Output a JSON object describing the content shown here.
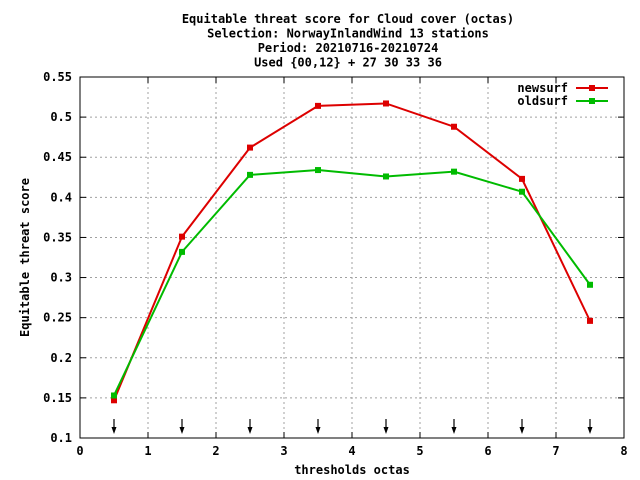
{
  "chart_data": {
    "type": "line",
    "title_lines": [
      "Equitable threat score  for Cloud cover (octas)",
      "Selection: NorwayInlandWind     13 stations",
      "Period: 20210716-20210724",
      "Used {00,12} + 27 30 33 36"
    ],
    "xlabel": "thresholds octas",
    "ylabel": "Equitable threat score",
    "xlim": [
      0,
      8
    ],
    "ylim": [
      0.1,
      0.55
    ],
    "xticks": [
      "0",
      "1",
      "2",
      "3",
      "4",
      "5",
      "6",
      "7",
      "8"
    ],
    "yticks": [
      "0.1",
      "0.15",
      "0.2",
      "0.25",
      "0.3",
      "0.35",
      "0.4",
      "0.45",
      "0.5",
      "0.55"
    ],
    "grid": true,
    "legend_position": "top-right",
    "x": [
      0.5,
      1.5,
      2.5,
      3.5,
      4.5,
      5.5,
      6.5,
      7.5
    ],
    "threshold_arrows_x": [
      0.5,
      1.5,
      2.5,
      3.5,
      4.5,
      5.5,
      6.5,
      7.5
    ],
    "series": [
      {
        "name": "newsurf",
        "color": "#dd0000",
        "values": [
          0.147,
          0.351,
          0.462,
          0.514,
          0.517,
          0.488,
          0.423,
          0.246
        ]
      },
      {
        "name": "oldsurf",
        "color": "#00bb00",
        "values": [
          0.153,
          0.332,
          0.428,
          0.434,
          0.426,
          0.432,
          0.407,
          0.291
        ]
      }
    ]
  }
}
